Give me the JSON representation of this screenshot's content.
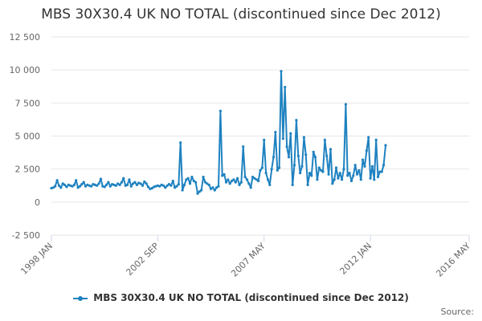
{
  "chart_data": {
    "type": "line",
    "title": "MBS 30X30.4 UK NO TOTAL (discontinued since Dec 2012)",
    "xlabel": "",
    "ylabel": "",
    "xlim": [
      "1998-01",
      "2016-05"
    ],
    "ylim": [
      -2500,
      12500
    ],
    "x_ticks": [
      "1998 JAN",
      "2002 SEP",
      "2007 MAY",
      "2012 JAN",
      "2016 MAY"
    ],
    "y_ticks": [
      "-2 500",
      "0",
      "2 500",
      "5 000",
      "7 500",
      "10 000",
      "12 500"
    ],
    "y_tick_values": [
      -2500,
      0,
      2500,
      5000,
      7500,
      10000,
      12500
    ],
    "grid": "horizontal",
    "legend_position": "bottom",
    "series": [
      {
        "name": "MBS 30X30.4 UK NO TOTAL (discontinued since Dec 2012)",
        "color": "#1f82c0",
        "points": [
          [
            "1998-01",
            1050
          ],
          [
            "1998-02",
            1100
          ],
          [
            "1998-03",
            1200
          ],
          [
            "1998-04",
            1650
          ],
          [
            "1998-05",
            1250
          ],
          [
            "1998-06",
            1100
          ],
          [
            "1998-07",
            1400
          ],
          [
            "1998-08",
            1300
          ],
          [
            "1998-09",
            1150
          ],
          [
            "1998-10",
            1300
          ],
          [
            "1998-11",
            1250
          ],
          [
            "1998-12",
            1200
          ],
          [
            "1999-01",
            1300
          ],
          [
            "1999-02",
            1650
          ],
          [
            "1999-03",
            1100
          ],
          [
            "1999-04",
            1200
          ],
          [
            "1999-05",
            1350
          ],
          [
            "1999-06",
            1500
          ],
          [
            "1999-07",
            1200
          ],
          [
            "1999-08",
            1300
          ],
          [
            "1999-09",
            1250
          ],
          [
            "1999-10",
            1200
          ],
          [
            "1999-11",
            1350
          ],
          [
            "1999-12",
            1300
          ],
          [
            "2000-01",
            1250
          ],
          [
            "2000-02",
            1400
          ],
          [
            "2000-03",
            1750
          ],
          [
            "2000-04",
            1200
          ],
          [
            "2000-05",
            1150
          ],
          [
            "2000-06",
            1300
          ],
          [
            "2000-07",
            1500
          ],
          [
            "2000-08",
            1200
          ],
          [
            "2000-09",
            1350
          ],
          [
            "2000-10",
            1300
          ],
          [
            "2000-11",
            1250
          ],
          [
            "2000-12",
            1400
          ],
          [
            "2001-01",
            1300
          ],
          [
            "2001-02",
            1500
          ],
          [
            "2001-03",
            1800
          ],
          [
            "2001-04",
            1250
          ],
          [
            "2001-05",
            1300
          ],
          [
            "2001-06",
            1700
          ],
          [
            "2001-07",
            1200
          ],
          [
            "2001-08",
            1400
          ],
          [
            "2001-09",
            1500
          ],
          [
            "2001-10",
            1300
          ],
          [
            "2001-11",
            1450
          ],
          [
            "2001-12",
            1400
          ],
          [
            "2002-01",
            1250
          ],
          [
            "2002-02",
            1550
          ],
          [
            "2002-03",
            1400
          ],
          [
            "2002-04",
            1150
          ],
          [
            "2002-05",
            1000
          ],
          [
            "2002-06",
            1050
          ],
          [
            "2002-07",
            1150
          ],
          [
            "2002-08",
            1200
          ],
          [
            "2002-09",
            1250
          ],
          [
            "2002-10",
            1200
          ],
          [
            "2002-11",
            1300
          ],
          [
            "2002-12",
            1250
          ],
          [
            "2003-01",
            1100
          ],
          [
            "2003-02",
            1250
          ],
          [
            "2003-03",
            1350
          ],
          [
            "2003-04",
            1250
          ],
          [
            "2003-05",
            1600
          ],
          [
            "2003-06",
            1100
          ],
          [
            "2003-07",
            1200
          ],
          [
            "2003-08",
            1350
          ],
          [
            "2003-09",
            4500
          ],
          [
            "2003-10",
            900
          ],
          [
            "2003-11",
            1300
          ],
          [
            "2003-12",
            1700
          ],
          [
            "2004-01",
            1800
          ],
          [
            "2004-02",
            1400
          ],
          [
            "2004-03",
            1900
          ],
          [
            "2004-04",
            1600
          ],
          [
            "2004-05",
            1500
          ],
          [
            "2004-06",
            650
          ],
          [
            "2004-07",
            800
          ],
          [
            "2004-08",
            900
          ],
          [
            "2004-09",
            1900
          ],
          [
            "2004-10",
            1500
          ],
          [
            "2004-11",
            1400
          ],
          [
            "2004-12",
            1300
          ],
          [
            "2005-01",
            1000
          ],
          [
            "2005-02",
            1100
          ],
          [
            "2005-03",
            900
          ],
          [
            "2005-04",
            1100
          ],
          [
            "2005-05",
            1200
          ],
          [
            "2005-06",
            6900
          ],
          [
            "2005-07",
            2000
          ],
          [
            "2005-08",
            2100
          ],
          [
            "2005-09",
            1500
          ],
          [
            "2005-10",
            1700
          ],
          [
            "2005-11",
            1400
          ],
          [
            "2005-12",
            1600
          ],
          [
            "2006-01",
            1700
          ],
          [
            "2006-02",
            1500
          ],
          [
            "2006-03",
            1800
          ],
          [
            "2006-04",
            1300
          ],
          [
            "2006-05",
            1500
          ],
          [
            "2006-06",
            4200
          ],
          [
            "2006-07",
            1900
          ],
          [
            "2006-08",
            1700
          ],
          [
            "2006-09",
            1400
          ],
          [
            "2006-10",
            1100
          ],
          [
            "2006-11",
            1900
          ],
          [
            "2006-12",
            1800
          ],
          [
            "2007-01",
            1700
          ],
          [
            "2007-02",
            1600
          ],
          [
            "2007-03",
            2400
          ],
          [
            "2007-04",
            2600
          ],
          [
            "2007-05",
            4700
          ],
          [
            "2007-06",
            2200
          ],
          [
            "2007-07",
            1700
          ],
          [
            "2007-08",
            1300
          ],
          [
            "2007-09",
            2500
          ],
          [
            "2007-10",
            3400
          ],
          [
            "2007-11",
            5300
          ],
          [
            "2007-12",
            2400
          ],
          [
            "2008-01",
            2600
          ],
          [
            "2008-02",
            9900
          ],
          [
            "2008-03",
            4800
          ],
          [
            "2008-04",
            8700
          ],
          [
            "2008-05",
            4200
          ],
          [
            "2008-06",
            3400
          ],
          [
            "2008-07",
            5200
          ],
          [
            "2008-08",
            1300
          ],
          [
            "2008-09",
            2800
          ],
          [
            "2008-10",
            6200
          ],
          [
            "2008-11",
            3500
          ],
          [
            "2008-12",
            2200
          ],
          [
            "2009-01",
            2700
          ],
          [
            "2009-02",
            4900
          ],
          [
            "2009-03",
            3600
          ],
          [
            "2009-04",
            1300
          ],
          [
            "2009-05",
            2200
          ],
          [
            "2009-06",
            2000
          ],
          [
            "2009-07",
            3800
          ],
          [
            "2009-08",
            3400
          ],
          [
            "2009-09",
            1700
          ],
          [
            "2009-10",
            2600
          ],
          [
            "2009-11",
            2400
          ],
          [
            "2009-12",
            2300
          ],
          [
            "2010-01",
            4700
          ],
          [
            "2010-02",
            3500
          ],
          [
            "2010-03",
            2100
          ],
          [
            "2010-04",
            4000
          ],
          [
            "2010-05",
            1400
          ],
          [
            "2010-06",
            1700
          ],
          [
            "2010-07",
            2600
          ],
          [
            "2010-08",
            1800
          ],
          [
            "2010-09",
            2200
          ],
          [
            "2010-10",
            1700
          ],
          [
            "2010-11",
            2500
          ],
          [
            "2010-12",
            7400
          ],
          [
            "2011-01",
            2000
          ],
          [
            "2011-02",
            2200
          ],
          [
            "2011-03",
            1600
          ],
          [
            "2011-04",
            2000
          ],
          [
            "2011-05",
            2800
          ],
          [
            "2011-06",
            2100
          ],
          [
            "2011-07",
            2400
          ],
          [
            "2011-08",
            1700
          ],
          [
            "2011-09",
            3200
          ],
          [
            "2011-10",
            2700
          ],
          [
            "2011-11",
            3900
          ],
          [
            "2011-12",
            4900
          ],
          [
            "2012-01",
            1800
          ],
          [
            "2012-02",
            2700
          ],
          [
            "2012-03",
            1700
          ],
          [
            "2012-04",
            4700
          ],
          [
            "2012-05",
            1900
          ],
          [
            "2012-06",
            2300
          ],
          [
            "2012-07",
            2300
          ],
          [
            "2012-08",
            2800
          ],
          [
            "2012-09",
            4300
          ]
        ]
      }
    ]
  },
  "legend": {
    "label": "MBS 30X30.4 UK NO TOTAL (discontinued since Dec 2012)"
  },
  "credits": "Source:",
  "colors": {
    "series": "#1f82c0",
    "grid": "#e6e6e6",
    "axis": "#ccd6eb",
    "tick_text": "#666666"
  }
}
